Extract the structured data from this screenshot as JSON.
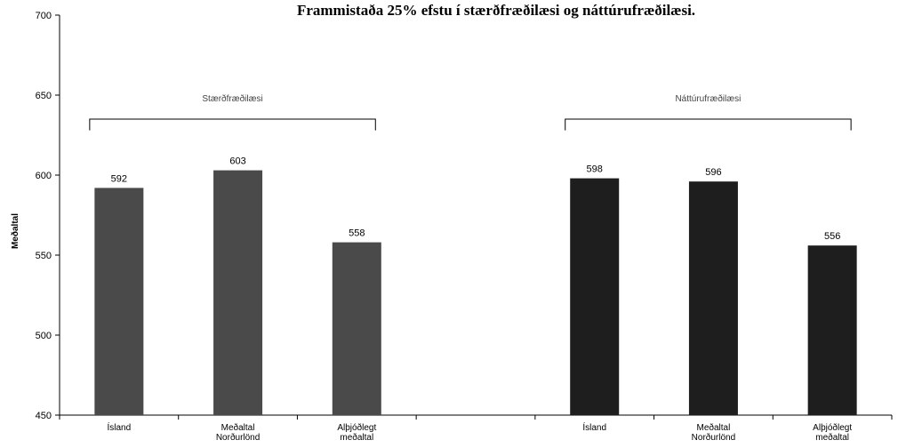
{
  "chart_data": {
    "type": "bar",
    "title": "Frammistaða 25% efstu í stærðfræðilæsi og náttúrufræðilæsi.",
    "ylabel": "Meðaltal",
    "xlabel": "",
    "ylim": [
      450,
      700
    ],
    "yticks": [
      450,
      500,
      550,
      600,
      650,
      700
    ],
    "grid": false,
    "legend": "none",
    "groups": [
      {
        "name": "Stærðfræðilæsi",
        "color": "#4a4a4a",
        "bars": [
          {
            "label": [
              "Ísland"
            ],
            "value": 592
          },
          {
            "label": [
              "Meðaltal",
              "Norðurlönd"
            ],
            "value": 603
          },
          {
            "label": [
              "Alþjóðlegt",
              "meðaltal"
            ],
            "value": 558
          }
        ]
      },
      {
        "name": "Náttúrufræðilæsi",
        "color": "#1e1e1e",
        "bars": [
          {
            "label": [
              "Ísland"
            ],
            "value": 598
          },
          {
            "label": [
              "Meðaltal",
              "Norðurlönd"
            ],
            "value": 596
          },
          {
            "label": [
              "Alþjóðlegt",
              "meðaltal"
            ],
            "value": 556
          }
        ]
      }
    ]
  }
}
